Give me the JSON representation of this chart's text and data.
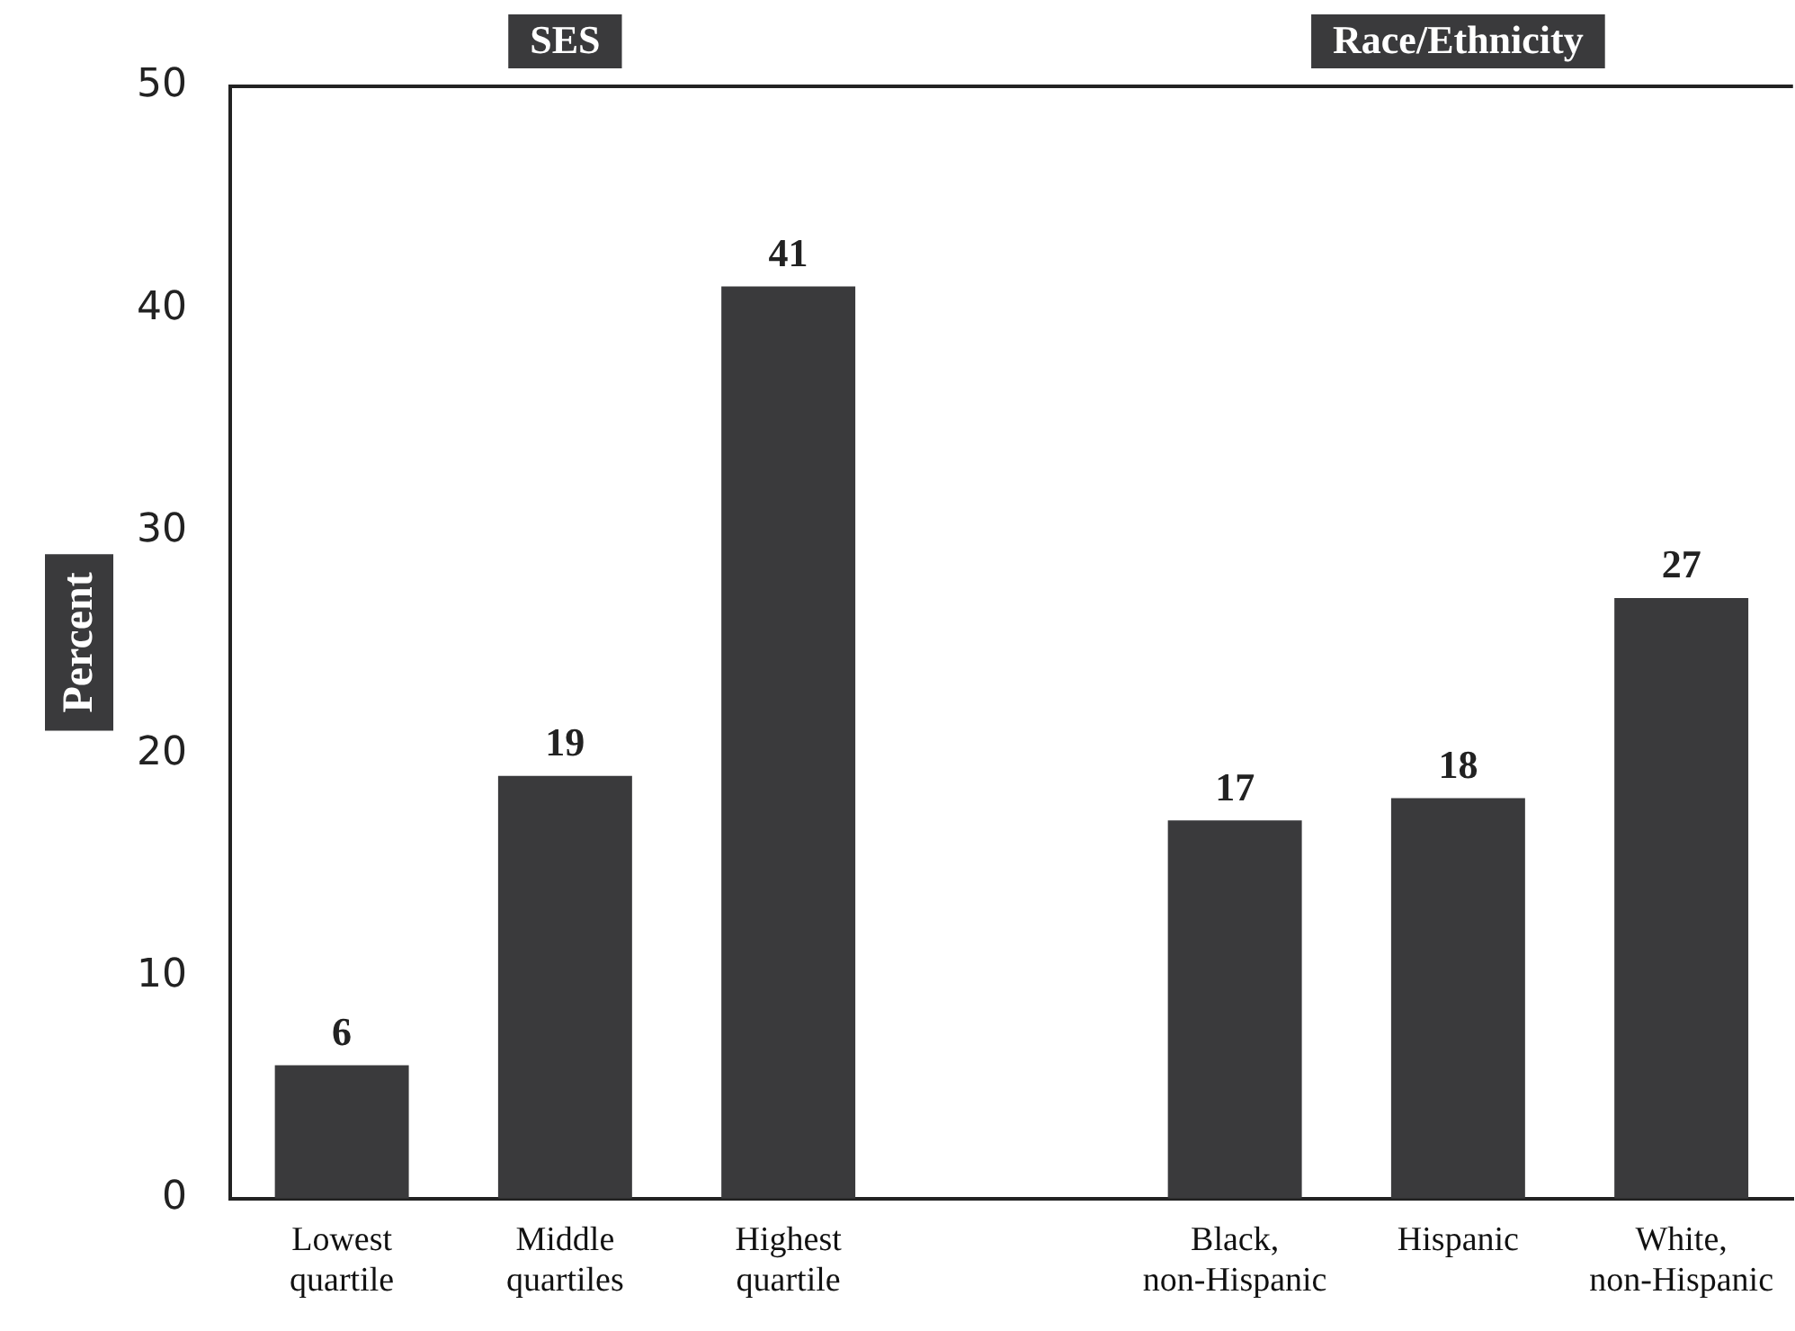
{
  "chart_data": {
    "type": "bar",
    "ylabel": "Percent",
    "categories": [
      "Lowest quartile",
      "Middle quartiles",
      "Highest quartile",
      null,
      "Black, non-Hispanic",
      "Hispanic",
      "White, non-Hispanic"
    ],
    "values": [
      6,
      19,
      41,
      null,
      17,
      18,
      27
    ],
    "color": "#3a3a3c",
    "ylim": [
      0,
      50
    ],
    "yticks": [
      0,
      10,
      20,
      30,
      40,
      50
    ],
    "grid": false,
    "legend": false,
    "data_labels": true,
    "annotations": [
      "SES",
      "Race/Ethnicity"
    ]
  }
}
